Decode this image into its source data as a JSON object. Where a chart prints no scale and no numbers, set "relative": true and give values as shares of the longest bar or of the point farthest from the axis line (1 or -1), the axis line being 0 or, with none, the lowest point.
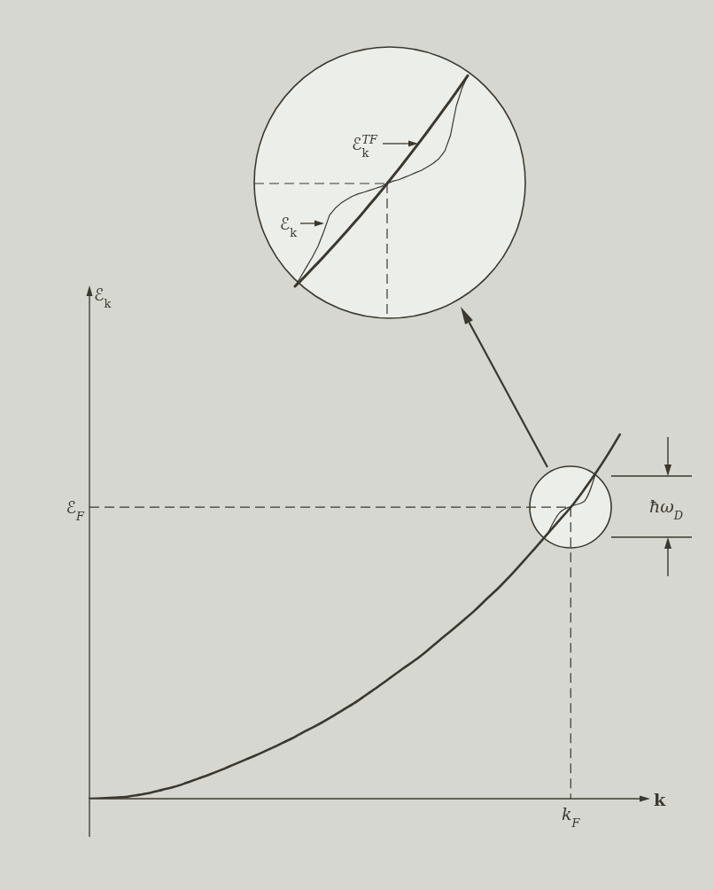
{
  "chart_data": {
    "type": "line",
    "xlabel": "k",
    "relative": true,
    "categories": [
      null,
      null,
      null,
      null,
      null,
      null,
      null,
      null,
      null,
      null,
      null,
      null,
      null,
      null,
      null,
      null,
      null,
      null,
      null,
      null,
      null,
      null,
      null,
      null,
      null,
      null,
      null,
      null,
      null,
      null,
      null,
      null,
      null,
      null,
      null,
      null,
      null,
      null,
      null,
      null,
      null,
      null,
      null,
      null,
      null,
      null,
      null
    ],
    "series": [
      {
        "color": "#3a382f",
        "values": [
          0,
          0.001,
          0.003,
          0.005,
          0.01,
          0.016,
          0.024,
          0.032,
          0.043,
          0.055,
          0.067,
          0.08,
          0.094,
          0.108,
          0.122,
          0.137,
          0.153,
          0.169,
          0.187,
          0.204,
          0.223,
          0.243,
          0.263,
          0.286,
          0.309,
          0.333,
          0.357,
          0.38,
          0.406,
          0.434,
          0.461,
          0.489,
          0.518,
          0.55,
          0.581,
          0.615,
          0.652,
          0.689,
          0.727,
          0.765,
          0.803,
          0.847,
          0.894,
          0.945,
          1,
          null,
          null
        ]
      },
      {
        "color": "#3a382f",
        "values": [
          null,
          null,
          null,
          null,
          null,
          null,
          null,
          null,
          null,
          null,
          null,
          null,
          null,
          null,
          null,
          null,
          null,
          null,
          null,
          null,
          null,
          null,
          null,
          null,
          null,
          null,
          null,
          null,
          null,
          null,
          null,
          null,
          null,
          null,
          null,
          null,
          null,
          null,
          0.727,
          0.785,
          0.803,
          0.815,
          0.894,
          null,
          null,
          null,
          null
        ]
      }
    ],
    "ref_lines": [
      {
        "axis": "y",
        "value": 0.8,
        "label": "ℰ$_{F}$",
        "line_style": "dashed"
      }
    ],
    "annotations": [
      "ℰ$_{k}$$^{TF}$",
      "ℰ$_{k}$",
      "ℰ$_{k}$",
      "ħω$_{D}$",
      "k$_{F}$"
    ]
  }
}
